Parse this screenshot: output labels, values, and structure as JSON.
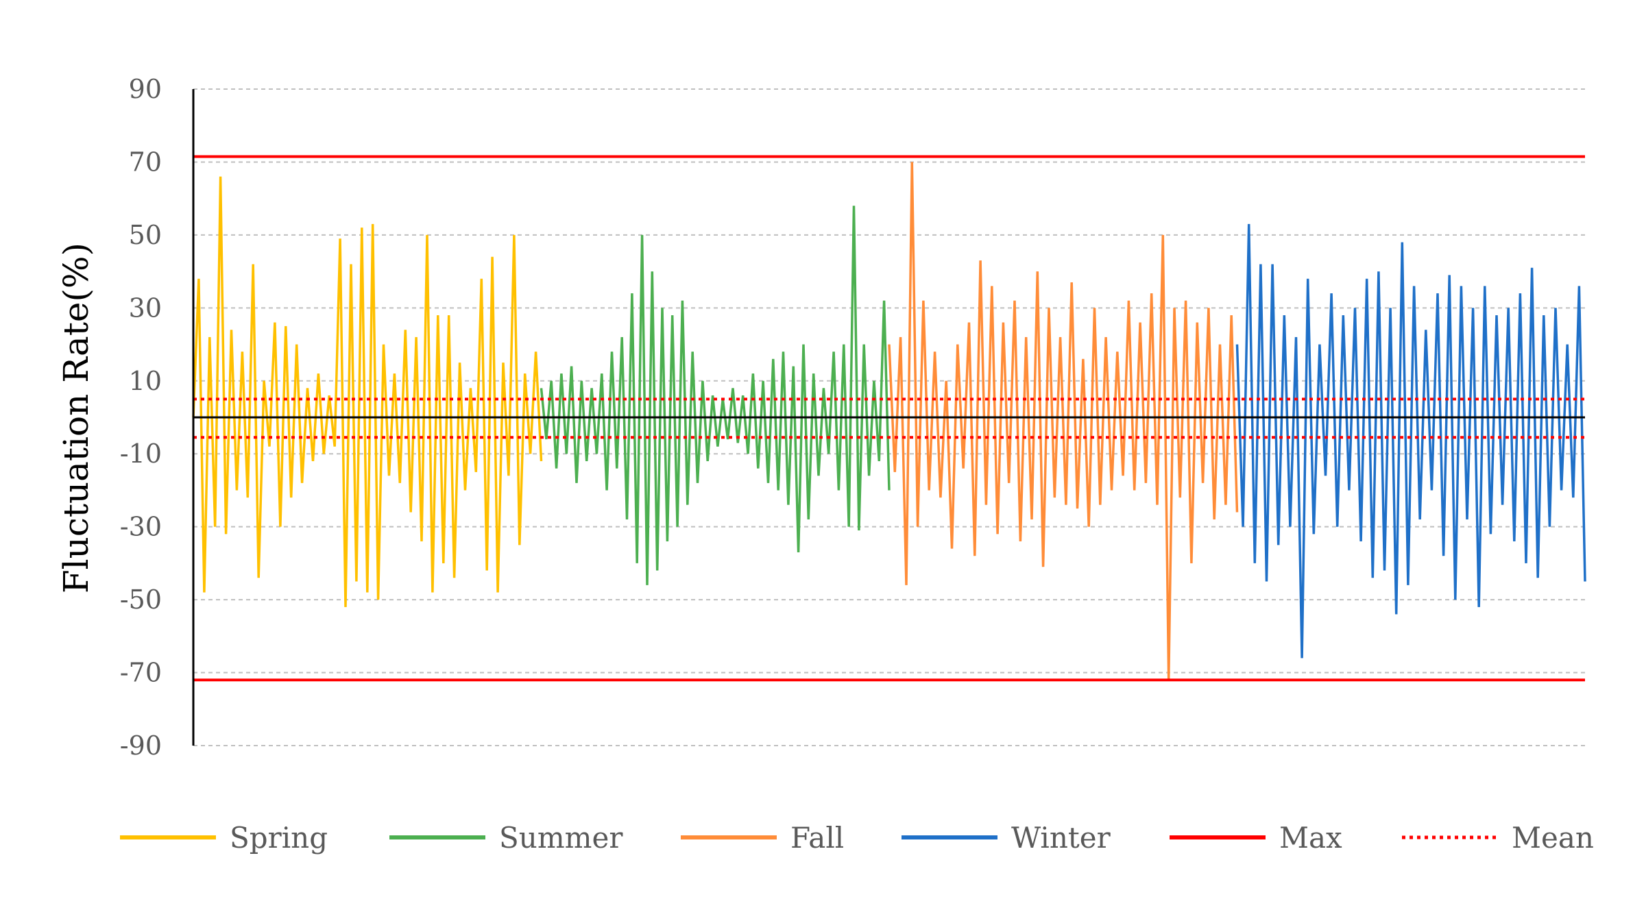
{
  "chart_data": {
    "type": "line",
    "title": "",
    "xlabel": "",
    "ylabel": "Fluctuation Rate(%)",
    "ylim": [
      -90,
      90
    ],
    "yticks": [
      90,
      70,
      50,
      30,
      10,
      -10,
      -30,
      -50,
      -70,
      -90
    ],
    "grid": true,
    "legend_position": "bottom",
    "series": [
      {
        "name": "Spring",
        "color": "#FFC000",
        "values": [
          0,
          38,
          -48,
          22,
          -30,
          66,
          -32,
          24,
          -20,
          18,
          -22,
          42,
          -44,
          10,
          -8,
          26,
          -30,
          25,
          -22,
          20,
          -18,
          8,
          -12,
          12,
          -10,
          6,
          -8,
          49,
          -52,
          42,
          -45,
          52,
          -48,
          53,
          -50,
          20,
          -16,
          12,
          -18,
          24,
          -26,
          22,
          -34,
          50,
          -48,
          28,
          -40,
          28,
          -44,
          15,
          -20,
          8,
          -15,
          38,
          -42,
          44,
          -48,
          15,
          -16,
          50,
          -35,
          12,
          -10,
          18,
          -12
        ]
      },
      {
        "name": "Summer",
        "color": "#4CAF50",
        "values": [
          8,
          -6,
          10,
          -14,
          12,
          -10,
          14,
          -18,
          10,
          -12,
          8,
          -10,
          12,
          -20,
          18,
          -14,
          22,
          -28,
          34,
          -40,
          50,
          -46,
          40,
          -42,
          30,
          -34,
          28,
          -30,
          32,
          -24,
          18,
          -18,
          10,
          -12,
          6,
          -8,
          5,
          -6,
          8,
          -7,
          6,
          -10,
          12,
          -14,
          10,
          -18,
          16,
          -20,
          18,
          -24,
          14,
          -37,
          20,
          -28,
          12,
          -16,
          8,
          -10,
          18,
          -20,
          20,
          -30,
          58,
          -31,
          20,
          -16,
          10,
          -12,
          32,
          -20
        ]
      },
      {
        "name": "Fall",
        "color": "#FF8C38",
        "values": [
          20,
          -15,
          22,
          -46,
          70,
          -30,
          32,
          -20,
          18,
          -22,
          10,
          -36,
          20,
          -14,
          26,
          -38,
          43,
          -24,
          36,
          -32,
          26,
          -18,
          32,
          -34,
          22,
          -28,
          40,
          -41,
          30,
          -22,
          22,
          -24,
          37,
          -25,
          16,
          -30,
          30,
          -24,
          22,
          -20,
          18,
          -16,
          32,
          -20,
          26,
          -18,
          34,
          -24,
          50,
          -72,
          30,
          -22,
          32,
          -40,
          26,
          -18,
          30,
          -28,
          20,
          -24,
          28,
          -26
        ]
      },
      {
        "name": "Winter",
        "color": "#1F70C8",
        "values": [
          20,
          -30,
          53,
          -40,
          42,
          -45,
          42,
          -35,
          28,
          -30,
          22,
          -66,
          38,
          -32,
          20,
          -16,
          34,
          -30,
          28,
          -20,
          30,
          -34,
          38,
          -44,
          40,
          -42,
          30,
          -54,
          48,
          -46,
          36,
          -28,
          24,
          -20,
          34,
          -38,
          39,
          -50,
          36,
          -28,
          30,
          -52,
          36,
          -32,
          28,
          -24,
          30,
          -34,
          34,
          -40,
          41,
          -44,
          28,
          -30,
          30,
          -20,
          20,
          -22,
          36,
          -45
        ]
      }
    ],
    "reference_lines": [
      {
        "name": "Max",
        "color": "#FF0000",
        "style": "solid",
        "values": [
          71.5,
          -72
        ]
      },
      {
        "name": "Mean",
        "color": "#FF0000",
        "style": "dotted",
        "values": [
          5,
          -5.5
        ]
      },
      {
        "name": "",
        "color": "#000000",
        "style": "solid",
        "values": [
          0
        ]
      }
    ]
  },
  "legend": {
    "items": [
      {
        "label": "Spring",
        "color": "#FFC000",
        "style": "solid"
      },
      {
        "label": "Summer",
        "color": "#4CAF50",
        "style": "solid"
      },
      {
        "label": "Fall",
        "color": "#FF8C38",
        "style": "solid"
      },
      {
        "label": "Winter",
        "color": "#1F70C8",
        "style": "solid"
      },
      {
        "label": "Max",
        "color": "#FF0000",
        "style": "solid"
      },
      {
        "label": "Mean",
        "color": "#FF0000",
        "style": "dotted"
      }
    ]
  }
}
